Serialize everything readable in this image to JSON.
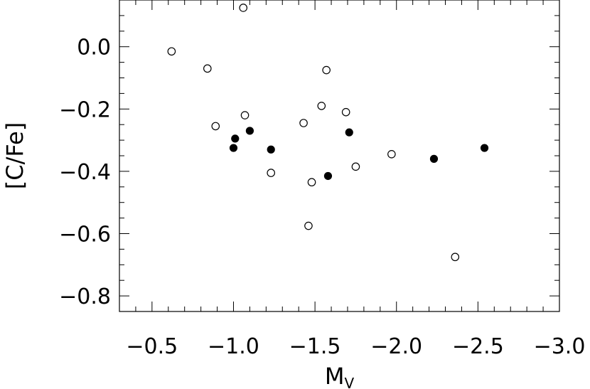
{
  "chart_data": {
    "type": "scatter",
    "xlabel": "M",
    "xlabel_subscript": "V",
    "ylabel": "[C/Fe]",
    "xlim": [
      -0.3,
      -3.0
    ],
    "ylim": [
      -0.85,
      0.15
    ],
    "x_ticks": [
      -0.5,
      -1.0,
      -1.5,
      -2.0,
      -2.5,
      -3.0
    ],
    "x_tick_labels": [
      "−0.5",
      "−1.0",
      "−1.5",
      "−2.0",
      "−2.5",
      "−3.0"
    ],
    "y_ticks": [
      0.0,
      -0.2,
      -0.4,
      -0.6,
      -0.8
    ],
    "y_tick_labels": [
      "0.0",
      "−0.2",
      "−0.4",
      "−0.6",
      "−0.8"
    ],
    "grid": false,
    "series": [
      {
        "marker": "open-circle",
        "color": "#000000",
        "points": [
          {
            "x": -0.62,
            "y": -0.015
          },
          {
            "x": -0.84,
            "y": -0.07
          },
          {
            "x": -0.89,
            "y": -0.255
          },
          {
            "x": -1.06,
            "y": 0.125
          },
          {
            "x": -1.07,
            "y": -0.22
          },
          {
            "x": -1.23,
            "y": -0.405
          },
          {
            "x": -1.43,
            "y": -0.245
          },
          {
            "x": -1.46,
            "y": -0.575
          },
          {
            "x": -1.48,
            "y": -0.435
          },
          {
            "x": -1.54,
            "y": -0.19
          },
          {
            "x": -1.57,
            "y": -0.075
          },
          {
            "x": -1.69,
            "y": -0.21
          },
          {
            "x": -1.75,
            "y": -0.385
          },
          {
            "x": -1.97,
            "y": -0.345
          },
          {
            "x": -2.36,
            "y": -0.675
          }
        ]
      },
      {
        "marker": "filled-circle",
        "color": "#000000",
        "points": [
          {
            "x": -1.0,
            "y": -0.325
          },
          {
            "x": -1.01,
            "y": -0.295
          },
          {
            "x": -1.1,
            "y": -0.27
          },
          {
            "x": -1.23,
            "y": -0.33
          },
          {
            "x": -1.58,
            "y": -0.415
          },
          {
            "x": -1.71,
            "y": -0.275
          },
          {
            "x": -2.23,
            "y": -0.36
          },
          {
            "x": -2.54,
            "y": -0.325
          }
        ]
      }
    ]
  }
}
